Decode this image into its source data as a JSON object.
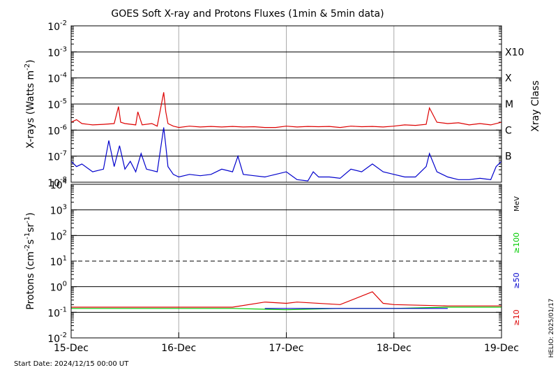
{
  "chart_data": {
    "type": "line",
    "title": "GOES Soft X-ray and Protons Fluxes   (1min & 5min data)",
    "start_date": "Start Date: 2024/12/15 00:00 UT",
    "credit": "HELIO: 2025/01/17",
    "x_axis": {
      "min": 0,
      "max": 4,
      "ticks": [
        0,
        1,
        2,
        3,
        4
      ],
      "tick_labels": [
        "15-Dec",
        "16-Dec",
        "17-Dec",
        "18-Dec",
        "19-Dec"
      ]
    },
    "panels": [
      {
        "name": "xray",
        "ylabel_base": "X-rays (Watts m",
        "ylabel_exp": "-2",
        "ylabel_end": ")",
        "yscale": "log",
        "ylim_exp": [
          -8,
          -2
        ],
        "tick_exps": [
          -8,
          -7,
          -6,
          -5,
          -4,
          -3,
          -2
        ],
        "tick_labels": [
          "10",
          "10",
          "10",
          "10",
          "10",
          "10",
          "10"
        ],
        "tick_label_exps": [
          "-8",
          "-7",
          "-6",
          "-5",
          "-4",
          "-3",
          "-2"
        ],
        "gridlines_exp": [
          -7,
          -6,
          -5,
          -4,
          -3
        ],
        "right_label": "Xray Class",
        "class_labels": [
          {
            "exp": -7,
            "label": "B"
          },
          {
            "exp": -6,
            "label": "C"
          },
          {
            "exp": -5,
            "label": "M"
          },
          {
            "exp": -4,
            "label": "X"
          },
          {
            "exp": -3,
            "label": "X10"
          }
        ],
        "series": [
          {
            "color": "#dd0000",
            "x": [
              0,
              0.05,
              0.1,
              0.2,
              0.3,
              0.4,
              0.44,
              0.46,
              0.5,
              0.6,
              0.62,
              0.66,
              0.75,
              0.8,
              0.86,
              0.88,
              0.9,
              0.95,
              1.0,
              1.1,
              1.2,
              1.3,
              1.4,
              1.5,
              1.6,
              1.7,
              1.8,
              1.9,
              2.0,
              2.1,
              2.2,
              2.3,
              2.4,
              2.5,
              2.6,
              2.7,
              2.8,
              2.9,
              3.0,
              3.1,
              3.2,
              3.3,
              3.33,
              3.4,
              3.5,
              3.6,
              3.7,
              3.8,
              3.9,
              4.0
            ],
            "y_exp": [
              -5.7,
              -5.6,
              -5.75,
              -5.8,
              -5.78,
              -5.75,
              -5.1,
              -5.7,
              -5.75,
              -5.8,
              -5.3,
              -5.8,
              -5.75,
              -5.85,
              -4.55,
              -5.3,
              -5.75,
              -5.85,
              -5.9,
              -5.85,
              -5.88,
              -5.86,
              -5.88,
              -5.86,
              -5.88,
              -5.87,
              -5.9,
              -5.9,
              -5.85,
              -5.88,
              -5.86,
              -5.87,
              -5.86,
              -5.9,
              -5.85,
              -5.87,
              -5.86,
              -5.88,
              -5.85,
              -5.8,
              -5.82,
              -5.78,
              -5.15,
              -5.7,
              -5.75,
              -5.72,
              -5.8,
              -5.75,
              -5.8,
              -5.7
            ]
          },
          {
            "color": "#0000cc",
            "x": [
              0,
              0.05,
              0.1,
              0.2,
              0.3,
              0.35,
              0.4,
              0.45,
              0.5,
              0.55,
              0.6,
              0.65,
              0.7,
              0.8,
              0.86,
              0.88,
              0.9,
              0.95,
              1.0,
              1.1,
              1.2,
              1.3,
              1.4,
              1.5,
              1.55,
              1.6,
              1.7,
              1.8,
              1.9,
              2.0,
              2.1,
              2.2,
              2.25,
              2.3,
              2.4,
              2.5,
              2.6,
              2.7,
              2.8,
              2.9,
              3.0,
              3.1,
              3.2,
              3.3,
              3.33,
              3.4,
              3.5,
              3.6,
              3.7,
              3.8,
              3.9,
              3.95,
              4.0
            ],
            "y_exp": [
              -7.2,
              -7.4,
              -7.3,
              -7.6,
              -7.5,
              -6.4,
              -7.4,
              -6.6,
              -7.5,
              -7.2,
              -7.6,
              -6.9,
              -7.5,
              -7.6,
              -5.9,
              -6.6,
              -7.4,
              -7.7,
              -7.8,
              -7.7,
              -7.75,
              -7.7,
              -7.5,
              -7.6,
              -7.0,
              -7.7,
              -7.75,
              -7.8,
              -7.7,
              -7.6,
              -7.9,
              -7.95,
              -7.6,
              -7.8,
              -7.8,
              -7.85,
              -7.5,
              -7.6,
              -7.3,
              -7.6,
              -7.7,
              -7.8,
              -7.8,
              -7.4,
              -6.9,
              -7.6,
              -7.8,
              -7.9,
              -7.9,
              -7.85,
              -7.9,
              -7.4,
              -7.2
            ]
          }
        ]
      },
      {
        "name": "protons",
        "ylabel_base": "Protons (cm",
        "ylabel_mid1": "-2",
        "ylabel_mid2": "s",
        "ylabel_mid3": "-1",
        "ylabel_mid4": "sr",
        "ylabel_mid5": "-1",
        "ylabel_end": ")",
        "yscale": "log",
        "ylim_exp": [
          -2,
          4
        ],
        "tick_exps": [
          -2,
          -1,
          0,
          1,
          2,
          3,
          4
        ],
        "tick_labels": [
          "10",
          "10",
          "10",
          "10",
          "10",
          "10",
          "10"
        ],
        "tick_label_exps": [
          "-2",
          "-1",
          "0",
          "1",
          "2",
          "3",
          "4"
        ],
        "gridlines_exp": [
          -1,
          0,
          2,
          3
        ],
        "dashed_gridline_exp": 1,
        "unit_label": "MeV",
        "energy_labels": [
          {
            "label": "≥100",
            "color": "#00cc00"
          },
          {
            "label": "≥50",
            "color": "#0000cc"
          },
          {
            "label": "≥10",
            "color": "#dd0000"
          }
        ],
        "series": [
          {
            "name": "≥10",
            "color": "#dd0000",
            "x": [
              0,
              0.5,
              1.0,
              1.5,
              1.8,
              2.0,
              2.1,
              2.5,
              2.8,
              2.9,
              3.0,
              3.5,
              4.0
            ],
            "y_exp": [
              -0.8,
              -0.8,
              -0.8,
              -0.8,
              -0.6,
              -0.65,
              -0.6,
              -0.7,
              -0.2,
              -0.65,
              -0.7,
              -0.75,
              -0.75
            ]
          },
          {
            "name": "≥100",
            "color": "#00cc00",
            "x": [
              0,
              0.5,
              1.0,
              1.5,
              2.0,
              2.5,
              3.0,
              3.5,
              4.0
            ],
            "y_exp": [
              -0.85,
              -0.85,
              -0.85,
              -0.85,
              -0.9,
              -0.85,
              -0.85,
              -0.8,
              -0.8
            ]
          },
          {
            "name": "≥50",
            "color": "#0000cc",
            "x": [
              1.8,
              2.0,
              2.5,
              3.0,
              3.5
            ],
            "y_exp": [
              -0.85,
              -0.85,
              -0.85,
              -0.85,
              -0.85
            ]
          }
        ]
      }
    ]
  }
}
